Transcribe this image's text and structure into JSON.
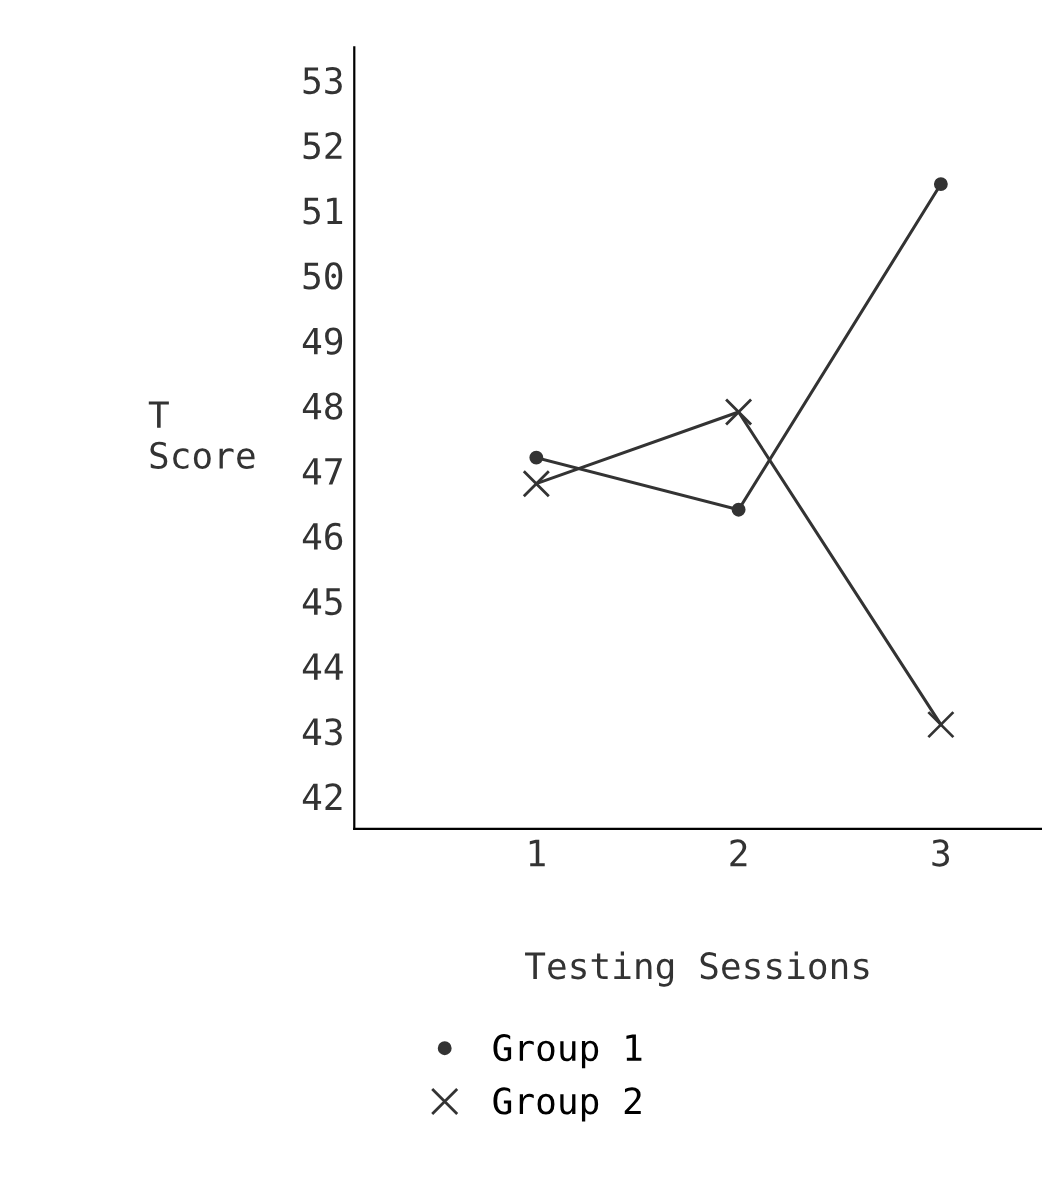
{
  "chart_data": {
    "type": "line",
    "xlabel": "Testing Sessions",
    "ylabel": "T\nScore",
    "categories": [
      "1",
      "2",
      "3"
    ],
    "series": [
      {
        "name": "Group 1",
        "color": "#333333",
        "marker": "circle",
        "values": [
          47.2,
          46.4,
          51.4
        ]
      },
      {
        "name": "Group 2",
        "color": "#333333",
        "marker": "cross",
        "values": [
          46.8,
          47.9,
          43.1
        ]
      }
    ],
    "ylim": [
      41.5,
      53.5
    ],
    "yticks": [
      42,
      43,
      44,
      45,
      46,
      47,
      48,
      49,
      50,
      51,
      52,
      53
    ],
    "grid": false,
    "legend": "bottom"
  }
}
